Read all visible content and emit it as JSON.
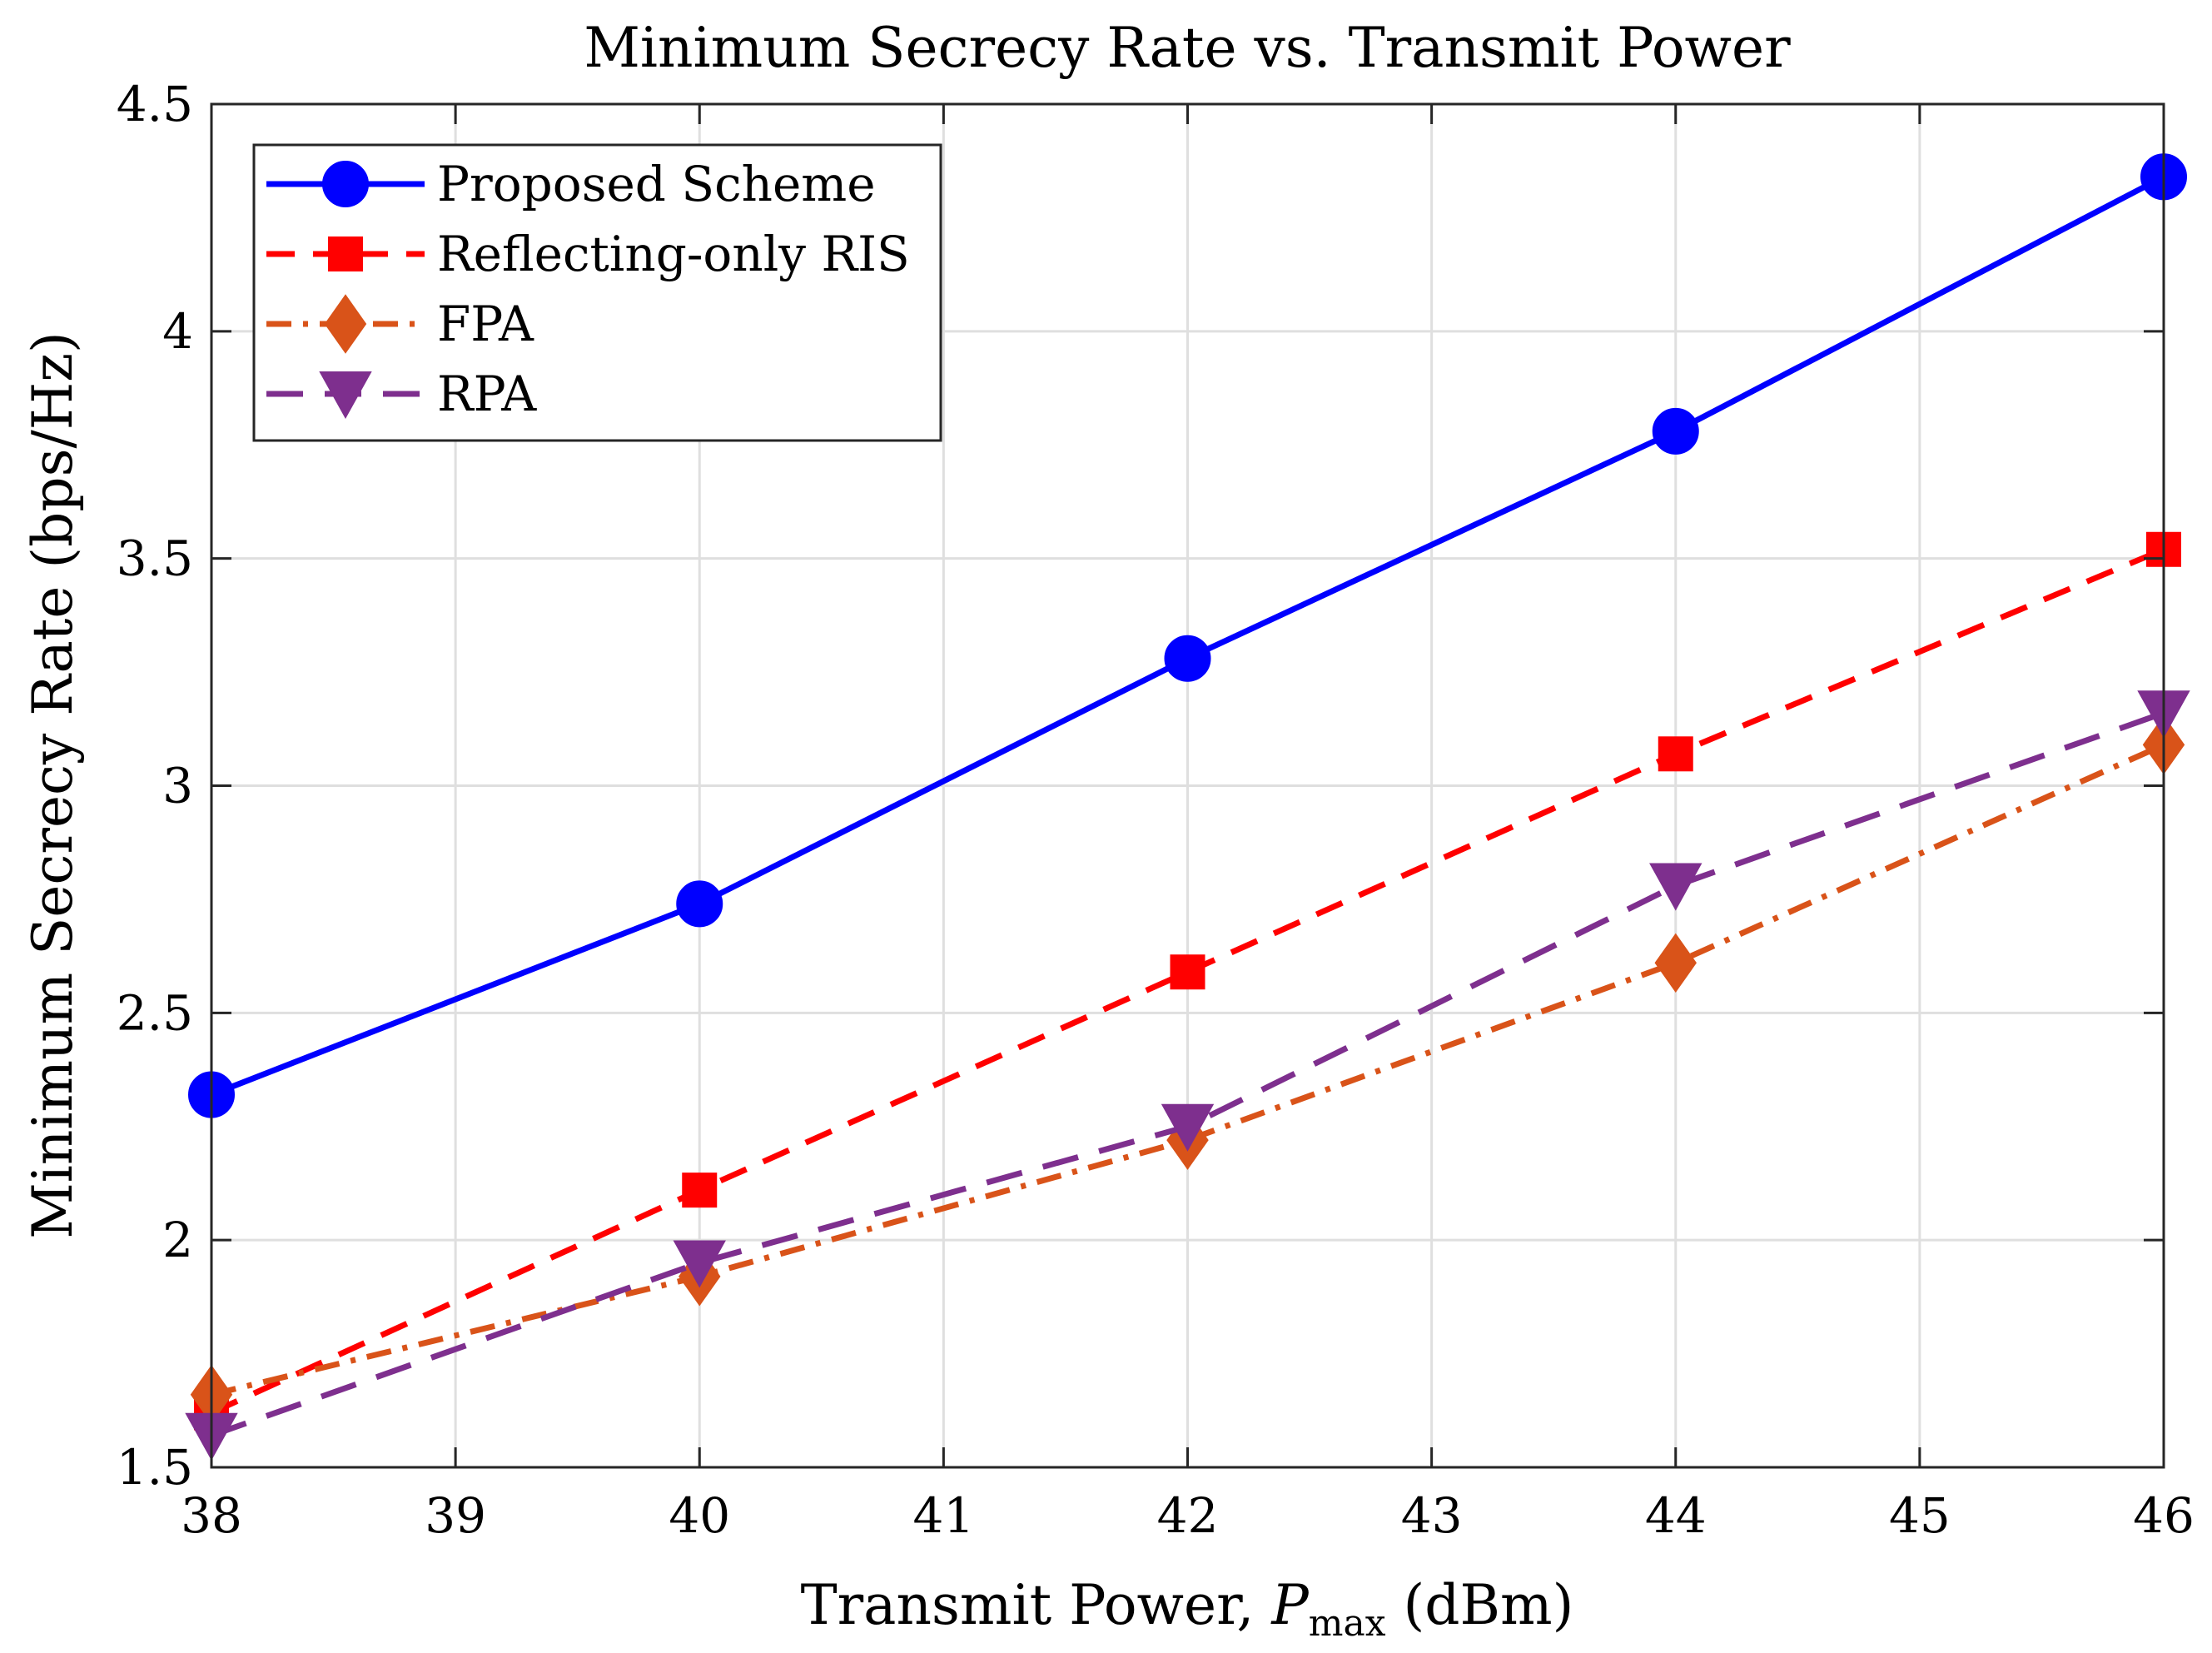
{
  "chart_data": {
    "type": "line",
    "title": "Minimum Secrecy Rate vs. Transmit Power",
    "xlabel": {
      "prefix": "Transmit Power, ",
      "symbol": "P",
      "subscript": "max",
      "suffix": " (dBm)"
    },
    "ylabel": "Minimum Secrecy Rate (bps/Hz)",
    "xlim": [
      38,
      46
    ],
    "ylim": [
      1.5,
      4.5
    ],
    "xticks": [
      38,
      39,
      40,
      41,
      42,
      43,
      44,
      45,
      46
    ],
    "xtick_labels": [
      "38",
      "39",
      "40",
      "41",
      "42",
      "43",
      "44",
      "45",
      "46"
    ],
    "yticks": [
      1.5,
      2,
      2.5,
      3,
      3.5,
      4,
      4.5
    ],
    "ytick_labels": [
      "1.5",
      "2",
      "2.5",
      "3",
      "3.5",
      "4",
      "4.5"
    ],
    "grid": true,
    "legend_position": "top-left",
    "x": [
      38,
      40,
      42,
      44,
      46
    ],
    "series": [
      {
        "name": "Proposed Scheme",
        "values": [
          2.32,
          2.74,
          3.28,
          3.78,
          4.34
        ],
        "color": "#0000ff",
        "line_style": "solid",
        "marker": "circle"
      },
      {
        "name": "Reflecting-only RIS",
        "values": [
          1.62,
          2.11,
          2.59,
          3.07,
          3.52
        ],
        "color": "#ff0000",
        "line_style": "dashed",
        "marker": "square"
      },
      {
        "name": "FPA",
        "values": [
          1.66,
          1.92,
          2.22,
          2.61,
          3.09
        ],
        "color": "#d95319",
        "line_style": "dashdot",
        "marker": "diamond"
      },
      {
        "name": "RPA",
        "values": [
          1.57,
          1.95,
          2.25,
          2.78,
          3.16
        ],
        "color": "#7e2f8e",
        "line_style": "longdash",
        "marker": "triangle-down"
      }
    ]
  }
}
